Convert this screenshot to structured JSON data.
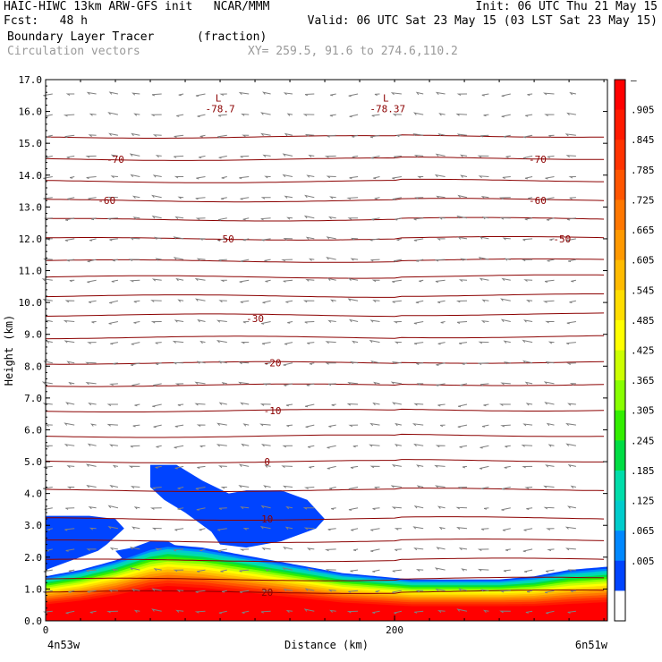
{
  "header": {
    "line1_left": "HAIC-HIWC 13km ARW-GFS init   NCAR/MMM",
    "line1_right": "Init: 06 UTC Thu 21 May 15",
    "line2_left": "Fcst:   48 h",
    "line2_right": "Valid: 06 UTC Sat 23 May 15 (03 LST Sat 23 May 15)",
    "field_name": "Boundary Layer Tracer",
    "field_units": "(fraction)",
    "overlay_name": "Circulation vectors",
    "xy_text": "XY= 259.5, 91.6 to 274.6,110.2"
  },
  "chart_data": {
    "type": "heatmap",
    "xlabel": "Distance (km)",
    "ylabel": "Height (km)",
    "xlim": [
      0,
      322
    ],
    "ylim": [
      0,
      17
    ],
    "y_ticks": [
      "0.0",
      "1.0",
      "2.0",
      "3.0",
      "4.0",
      "5.0",
      "6.0",
      "7.0",
      "8.0",
      "9.0",
      "10.0",
      "11.0",
      "12.0",
      "13.0",
      "14.0",
      "15.0",
      "16.0",
      "17.0"
    ],
    "x_ticks": [
      {
        "value": 0,
        "label": "0"
      },
      {
        "value": 200,
        "label": "200"
      }
    ],
    "x_end_labels": {
      "left": "4n53w",
      "right": "6n51w"
    },
    "colorbar": {
      "labels": [
        "–",
        ".905",
        ".845",
        ".785",
        ".725",
        ".665",
        ".605",
        ".545",
        ".485",
        ".425",
        ".365",
        ".305",
        ".245",
        ".185",
        ".125",
        ".065",
        ".005"
      ],
      "colors": [
        "#ff0000",
        "#ff1a00",
        "#ff3300",
        "#ff5500",
        "#ff7700",
        "#ff9900",
        "#ffbb00",
        "#ffdd00",
        "#ffff00",
        "#ccff00",
        "#88ff00",
        "#33ee00",
        "#00dd44",
        "#00ddaa",
        "#00cccc",
        "#0088ff",
        "#0044ff",
        "#ffffff"
      ]
    },
    "temperature_contours": {
      "levels": [
        -70,
        -60,
        -50,
        -30,
        -20,
        -10,
        0,
        10,
        20
      ],
      "level_labels": [
        "-70",
        "-60",
        "-50",
        "-30",
        "-20",
        "-10",
        "0",
        "10",
        "20"
      ],
      "label_positions": [
        {
          "level": "-70",
          "x": [
            40,
            282
          ],
          "y": 14.5
        },
        {
          "level": "-60",
          "x": [
            35,
            282
          ],
          "y": 13.2
        },
        {
          "level": "-50",
          "x": [
            103,
            296
          ],
          "y": 12.0
        },
        {
          "level": "-30",
          "x": [
            120
          ],
          "y": 9.5
        },
        {
          "level": "-20",
          "x": [
            130
          ],
          "y": 8.1
        },
        {
          "level": "-10",
          "x": [
            130
          ],
          "y": 6.6
        },
        {
          "level": "0",
          "x": [
            127
          ],
          "y": 5.0
        },
        {
          "level": "10",
          "x": [
            127
          ],
          "y": 3.2
        },
        {
          "level": "20",
          "x": [
            127
          ],
          "y": 0.9
        }
      ],
      "line_heights_km": [
        0.9,
        1.3,
        1.9,
        2.5,
        3.2,
        4.1,
        5.0,
        5.8,
        6.6,
        7.4,
        8.1,
        8.9,
        9.6,
        10.2,
        10.8,
        11.3,
        12.0,
        12.6,
        13.2,
        13.8,
        14.5,
        15.2
      ]
    },
    "lows": [
      {
        "symbol": "L",
        "value": "-78.7",
        "x": 100,
        "y": 16.2
      },
      {
        "symbol": "L",
        "value": "-78.37",
        "x": 196,
        "y": 16.2
      }
    ],
    "tracer_boundary": {
      "x": [
        0,
        20,
        40,
        50,
        60,
        70,
        90,
        110,
        130,
        150,
        170,
        190,
        210,
        240,
        260,
        280,
        300,
        322
      ],
      "top_km_low_05": [
        1.4,
        1.6,
        1.9,
        2.1,
        2.3,
        2.4,
        2.3,
        2.1,
        1.9,
        1.7,
        1.5,
        1.4,
        1.3,
        1.3,
        1.3,
        1.4,
        1.6,
        1.7
      ],
      "top_km_1": [
        1.1,
        1.3,
        1.6,
        1.8,
        2.0,
        2.1,
        2.0,
        1.8,
        1.6,
        1.4,
        1.2,
        1.1,
        1.0,
        1.0,
        1.0,
        1.0,
        1.1,
        1.2
      ]
    },
    "blobs": [
      {
        "points": [
          [
            0,
            3.3
          ],
          [
            25,
            3.3
          ],
          [
            40,
            3.2
          ],
          [
            45,
            2.9
          ],
          [
            35,
            2.4
          ],
          [
            30,
            2.2
          ],
          [
            20,
            2.0
          ],
          [
            0,
            1.6
          ]
        ]
      },
      {
        "points": [
          [
            60,
            4.9
          ],
          [
            75,
            4.9
          ],
          [
            90,
            4.4
          ],
          [
            105,
            4.0
          ],
          [
            115,
            4.1
          ],
          [
            135,
            4.1
          ],
          [
            150,
            3.8
          ],
          [
            160,
            3.2
          ],
          [
            155,
            2.9
          ],
          [
            135,
            2.5
          ],
          [
            115,
            2.3
          ],
          [
            100,
            2.4
          ],
          [
            95,
            2.8
          ],
          [
            80,
            3.4
          ],
          [
            68,
            3.8
          ],
          [
            60,
            4.2
          ]
        ]
      },
      {
        "points": [
          [
            40,
            2.2
          ],
          [
            50,
            2.3
          ],
          [
            60,
            2.5
          ],
          [
            70,
            2.5
          ],
          [
            80,
            2.2
          ],
          [
            75,
            1.9
          ],
          [
            60,
            1.9
          ],
          [
            45,
            1.9
          ]
        ]
      }
    ],
    "grid": false,
    "legend": "right-colorbar"
  }
}
